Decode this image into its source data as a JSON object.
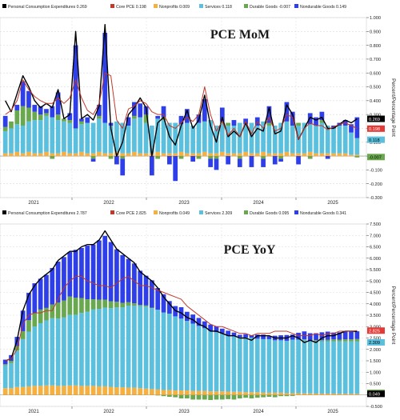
{
  "chart_data": [
    {
      "type": "bar",
      "title": "PCE MoM",
      "ylabel": "Percent/Percentage Point",
      "ylim": [
        -0.3,
        1.0
      ],
      "yticks": [
        "1.000",
        "0.900",
        "0.800",
        "0.700",
        "0.600",
        "0.500",
        "0.400",
        "0.300",
        "0.200",
        "0.100",
        "0.000",
        "-0.100",
        "-0.200",
        "-0.300"
      ],
      "x_labels": [
        "2021",
        "2022",
        "2023",
        "2024",
        "2025"
      ],
      "legend": [
        {
          "label": "Personal Consumption Expenditures 0.269",
          "color": "#000000"
        },
        {
          "label": "Core PCE 0.198",
          "color": "#c0392b"
        },
        {
          "label": "Nonprofits 0.009",
          "color": "#f5b041"
        },
        {
          "label": "Services 0.118",
          "color": "#5bc0de"
        },
        {
          "label": "Durable Goods -0.007",
          "color": "#6aa84f"
        },
        {
          "label": "Nondurable Goods 0.149",
          "color": "#2e3ee8"
        }
      ],
      "badges": [
        {
          "text": "0.269",
          "value": 0.269,
          "bg": "#000000",
          "fg": "#ffffff"
        },
        {
          "text": "0.198",
          "value": 0.198,
          "bg": "#e53935",
          "fg": "#ffffff"
        },
        {
          "text": "0.118",
          "value": 0.118,
          "bg": "#5bc0de",
          "fg": "#000000"
        },
        {
          "text": "-0.007",
          "value": -0.007,
          "bg": "#6aa84f",
          "fg": "#000000"
        }
      ],
      "series": [
        {
          "name": "Nonprofits",
          "color": "#f5b041",
          "values": [
            0.02,
            0.02,
            0.03,
            0.02,
            0.03,
            0.02,
            0.02,
            0.03,
            0.02,
            0.02,
            0.03,
            0.02,
            0.02,
            0.03,
            0.02,
            0.02,
            0.03,
            0.02,
            0.02,
            0.03,
            0.02,
            0.02,
            0.03,
            0.02,
            0.02,
            0.02,
            0.03,
            0.02,
            0.02,
            0.02,
            0.03,
            0.02,
            0.02,
            0.02,
            0.03,
            0.02,
            0.02,
            0.03,
            0.02,
            0.02,
            0.02,
            0.03,
            0.02,
            0.02,
            0.03,
            0.02,
            0.02,
            0.02,
            0.03,
            0.02,
            0.02,
            0.02,
            0.03,
            0.02,
            0.02,
            0.02,
            0.02,
            0.02,
            0.02,
            0.01,
            0.01
          ]
        },
        {
          "name": "Services",
          "color": "#5bc0de",
          "values": [
            0.16,
            0.18,
            0.2,
            0.2,
            0.22,
            0.24,
            0.24,
            0.26,
            0.26,
            0.24,
            0.22,
            0.22,
            0.18,
            0.2,
            0.22,
            0.22,
            0.24,
            0.22,
            0.2,
            0.22,
            0.22,
            0.2,
            0.24,
            0.26,
            0.22,
            0.2,
            0.24,
            0.24,
            0.22,
            0.22,
            0.2,
            0.22,
            0.2,
            0.22,
            0.22,
            0.24,
            0.2,
            0.22,
            0.2,
            0.2,
            0.22,
            0.2,
            0.22,
            0.2,
            0.22,
            0.2,
            0.2,
            0.22,
            0.22,
            0.2,
            0.2,
            0.22,
            0.2,
            0.2,
            0.22,
            0.2,
            0.18,
            0.2,
            0.2,
            0.16,
            0.12
          ]
        },
        {
          "name": "Durable Goods",
          "color": "#6aa84f",
          "values": [
            0.03,
            0.05,
            0.1,
            0.14,
            0.1,
            0.06,
            0.04,
            0.02,
            -0.02,
            0.04,
            0.02,
            0.02,
            0.0,
            0.02,
            0.0,
            -0.02,
            0.02,
            0.0,
            -0.02,
            0.0,
            -0.02,
            0.0,
            0.02,
            0.0,
            0.06,
            0.0,
            -0.02,
            0.02,
            0.0,
            0.0,
            -0.02,
            0.0,
            0.0,
            -0.02,
            0.0,
            -0.02,
            -0.02,
            0.0,
            0.02,
            0.0,
            -0.02,
            0.0,
            0.0,
            0.0,
            -0.02,
            0.02,
            0.0,
            -0.02,
            0.0,
            0.0,
            0.02,
            0.0,
            -0.02,
            0.0,
            0.02,
            0.0,
            0.0,
            0.0,
            0.0,
            0.0,
            -0.01
          ]
        },
        {
          "name": "Nondurable Goods",
          "color": "#2e3ee8",
          "values": [
            0.08,
            0.0,
            0.04,
            0.18,
            0.12,
            0.05,
            0.06,
            0.03,
            0.08,
            0.16,
            0.0,
            0.05,
            0.6,
            0.02,
            0.04,
            -0.02,
            0.08,
            0.65,
            0.02,
            -0.06,
            -0.12,
            0.06,
            0.1,
            0.1,
            0.06,
            -0.14,
            0.02,
            0.08,
            -0.06,
            -0.18,
            0.06,
            0.1,
            -0.04,
            0.06,
            0.16,
            -0.06,
            -0.08,
            0.1,
            -0.06,
            0.04,
            -0.06,
            0.04,
            -0.08,
            0.06,
            -0.06,
            0.12,
            -0.06,
            -0.02,
            0.14,
            0.1,
            -0.06,
            0.0,
            0.08,
            0.06,
            0.06,
            -0.02,
            0.02,
            0.02,
            0.04,
            0.06,
            0.15
          ]
        }
      ],
      "lines": [
        {
          "name": "Personal Consumption Expenditures",
          "color": "#000000",
          "values": [
            0.4,
            0.32,
            0.45,
            0.58,
            0.5,
            0.4,
            0.35,
            0.38,
            0.35,
            0.48,
            0.27,
            0.3,
            0.9,
            0.27,
            0.3,
            0.26,
            0.36,
            0.95,
            0.2,
            0.0,
            0.1,
            0.3,
            0.35,
            0.42,
            0.35,
            0.0,
            0.24,
            0.28,
            0.14,
            0.08,
            0.22,
            0.33,
            0.2,
            0.26,
            0.44,
            0.22,
            0.1,
            0.28,
            0.14,
            0.18,
            0.14,
            0.24,
            0.14,
            0.2,
            0.18,
            0.35,
            0.16,
            0.18,
            0.37,
            0.3,
            0.12,
            0.2,
            0.28,
            0.26,
            0.28,
            0.2,
            0.2,
            0.23,
            0.26,
            0.24,
            0.269
          ]
        },
        {
          "name": "Core PCE",
          "color": "#c0392b",
          "values": [
            0.3,
            0.33,
            0.4,
            0.55,
            0.48,
            0.43,
            0.4,
            0.38,
            0.38,
            0.42,
            0.38,
            0.42,
            0.55,
            0.42,
            0.33,
            0.3,
            0.38,
            0.6,
            0.58,
            0.26,
            0.2,
            0.34,
            0.36,
            0.4,
            0.38,
            0.32,
            0.3,
            0.3,
            0.22,
            0.2,
            0.24,
            0.28,
            0.25,
            0.3,
            0.5,
            0.3,
            0.18,
            0.25,
            0.15,
            0.2,
            0.14,
            0.25,
            0.16,
            0.25,
            0.2,
            0.28,
            0.18,
            0.2,
            0.3,
            0.28,
            0.12,
            0.2,
            0.24,
            0.22,
            0.22,
            0.19,
            0.21,
            0.23,
            0.24,
            0.22,
            0.198
          ]
        }
      ]
    },
    {
      "type": "bar",
      "title": "PCE YoY",
      "ylabel": "Percent/Percentage Point",
      "ylim": [
        -0.5,
        7.5
      ],
      "yticks": [
        "7.500",
        "7.000",
        "6.500",
        "6.000",
        "5.500",
        "5.000",
        "4.500",
        "4.000",
        "3.500",
        "3.000",
        "2.500",
        "2.000",
        "1.500",
        "1.000",
        "0.500",
        "0.000",
        "-0.500"
      ],
      "x_labels": [
        "2021",
        "2022",
        "2023",
        "2024",
        "2025"
      ],
      "legend": [
        {
          "label": "Personal Consumption Expenditures 2.787",
          "color": "#000000"
        },
        {
          "label": "Core PCE 2.825",
          "color": "#c0392b"
        },
        {
          "label": "Nonprofits 0.049",
          "color": "#f5b041"
        },
        {
          "label": "Services 2.309",
          "color": "#5bc0de"
        },
        {
          "label": "Durable Goods 0.095",
          "color": "#6aa84f"
        },
        {
          "label": "Nondurable Goods 0.341",
          "color": "#2e3ee8"
        }
      ],
      "badges": [
        {
          "text": "2.825",
          "value": 2.825,
          "bg": "#e53935",
          "fg": "#ffffff"
        },
        {
          "text": "2.309",
          "value": 2.309,
          "bg": "#5bc0de",
          "fg": "#000000"
        },
        {
          "text": "0.095",
          "value": 0.095,
          "bg": "#6aa84f",
          "fg": "#000000"
        },
        {
          "text": "0.049",
          "value": 0.049,
          "bg": "#000000",
          "fg": "#ffffff"
        }
      ],
      "series": [
        {
          "name": "Nonprofits",
          "color": "#f5b041",
          "values": [
            0.3,
            0.3,
            0.35,
            0.35,
            0.38,
            0.4,
            0.4,
            0.42,
            0.42,
            0.4,
            0.4,
            0.42,
            0.42,
            0.4,
            0.4,
            0.4,
            0.38,
            0.38,
            0.36,
            0.34,
            0.34,
            0.32,
            0.32,
            0.3,
            0.28,
            0.26,
            0.24,
            0.22,
            0.22,
            0.2,
            0.2,
            0.2,
            0.18,
            0.18,
            0.18,
            0.16,
            0.16,
            0.16,
            0.15,
            0.14,
            0.14,
            0.12,
            0.12,
            0.12,
            0.1,
            0.1,
            0.1,
            0.1,
            0.08,
            0.08,
            0.08,
            0.07,
            0.07,
            0.06,
            0.06,
            0.06,
            0.06,
            0.05,
            0.05,
            0.05,
            0.05
          ]
        },
        {
          "name": "Services",
          "color": "#5bc0de",
          "values": [
            1.0,
            1.1,
            1.6,
            2.1,
            2.4,
            2.6,
            2.75,
            2.85,
            2.95,
            2.95,
            3.0,
            3.1,
            3.1,
            3.2,
            3.25,
            3.35,
            3.4,
            3.45,
            3.45,
            3.5,
            3.5,
            3.6,
            3.6,
            3.6,
            3.6,
            3.55,
            3.5,
            3.4,
            3.35,
            3.25,
            3.15,
            3.05,
            2.95,
            2.85,
            2.75,
            2.65,
            2.6,
            2.55,
            2.45,
            2.45,
            2.4,
            2.4,
            2.4,
            2.35,
            2.35,
            2.35,
            2.3,
            2.3,
            2.3,
            2.35,
            2.35,
            2.35,
            2.3,
            2.3,
            2.3,
            2.3,
            2.3,
            2.3,
            2.3,
            2.3,
            2.309
          ]
        },
        {
          "name": "Durable Goods",
          "color": "#6aa84f",
          "values": [
            0.05,
            0.1,
            0.2,
            0.35,
            0.5,
            0.6,
            0.6,
            0.55,
            0.6,
            0.7,
            0.75,
            0.8,
            0.75,
            0.65,
            0.55,
            0.45,
            0.4,
            0.35,
            0.3,
            0.25,
            0.2,
            0.15,
            0.1,
            0.05,
            0.05,
            0.02,
            -0.02,
            -0.05,
            -0.08,
            -0.1,
            -0.15,
            -0.15,
            -0.2,
            -0.2,
            -0.2,
            -0.22,
            -0.2,
            -0.2,
            -0.18,
            -0.2,
            -0.15,
            -0.12,
            -0.15,
            -0.12,
            -0.1,
            -0.08,
            -0.1,
            -0.05,
            -0.05,
            -0.04,
            0.0,
            0.02,
            0.02,
            0.05,
            0.05,
            0.06,
            0.08,
            0.08,
            0.09,
            0.09,
            0.095
          ]
        },
        {
          "name": "Nondurable Goods",
          "color": "#2e3ee8",
          "values": [
            0.2,
            0.25,
            0.4,
            0.9,
            1.2,
            1.3,
            1.35,
            1.45,
            1.6,
            1.8,
            1.9,
            1.95,
            2.1,
            2.2,
            2.35,
            2.4,
            2.6,
            2.8,
            2.6,
            2.3,
            2.1,
            1.9,
            1.75,
            1.5,
            1.3,
            1.2,
            0.95,
            0.8,
            0.55,
            0.45,
            0.5,
            0.4,
            0.4,
            0.35,
            0.3,
            0.28,
            0.25,
            0.2,
            0.22,
            0.15,
            0.1,
            0.15,
            0.1,
            0.18,
            0.2,
            0.12,
            0.2,
            0.22,
            0.25,
            0.22,
            0.3,
            0.35,
            0.32,
            0.3,
            0.34,
            0.36,
            0.3,
            0.32,
            0.34,
            0.34,
            0.341
          ]
        }
      ],
      "lines": [
        {
          "name": "Personal Consumption Expenditures",
          "color": "#000000",
          "values": [
            1.5,
            1.6,
            2.4,
            3.7,
            4.4,
            4.8,
            5.1,
            5.3,
            5.5,
            5.9,
            6.1,
            6.3,
            6.3,
            6.5,
            6.6,
            6.6,
            6.8,
            7.2,
            6.8,
            6.4,
            6.2,
            6.0,
            5.8,
            5.4,
            5.2,
            5.0,
            4.7,
            4.3,
            4.0,
            3.7,
            3.6,
            3.4,
            3.3,
            3.1,
            3.0,
            2.8,
            2.8,
            2.7,
            2.6,
            2.6,
            2.5,
            2.5,
            2.4,
            2.6,
            2.6,
            2.6,
            2.5,
            2.5,
            2.5,
            2.6,
            2.5,
            2.3,
            2.4,
            2.3,
            2.5,
            2.6,
            2.6,
            2.7,
            2.8,
            2.8,
            2.787
          ]
        },
        {
          "name": "Core PCE",
          "color": "#c0392b",
          "values": [
            1.5,
            1.6,
            2.0,
            3.1,
            3.5,
            3.6,
            3.6,
            3.7,
            3.7,
            4.2,
            4.7,
            5.0,
            5.2,
            5.2,
            5.0,
            4.9,
            4.8,
            4.8,
            4.7,
            4.9,
            5.1,
            5.2,
            5.0,
            4.8,
            4.8,
            4.7,
            4.6,
            4.5,
            4.4,
            4.3,
            4.2,
            3.9,
            3.7,
            3.5,
            3.3,
            3.1,
            3.0,
            3.0,
            2.9,
            2.8,
            2.7,
            2.7,
            2.6,
            2.7,
            2.7,
            2.7,
            2.8,
            2.8,
            2.8,
            2.7,
            2.6,
            2.6,
            2.6,
            2.7,
            2.6,
            2.7,
            2.7,
            2.8,
            2.8,
            2.8,
            2.825
          ]
        }
      ]
    }
  ]
}
